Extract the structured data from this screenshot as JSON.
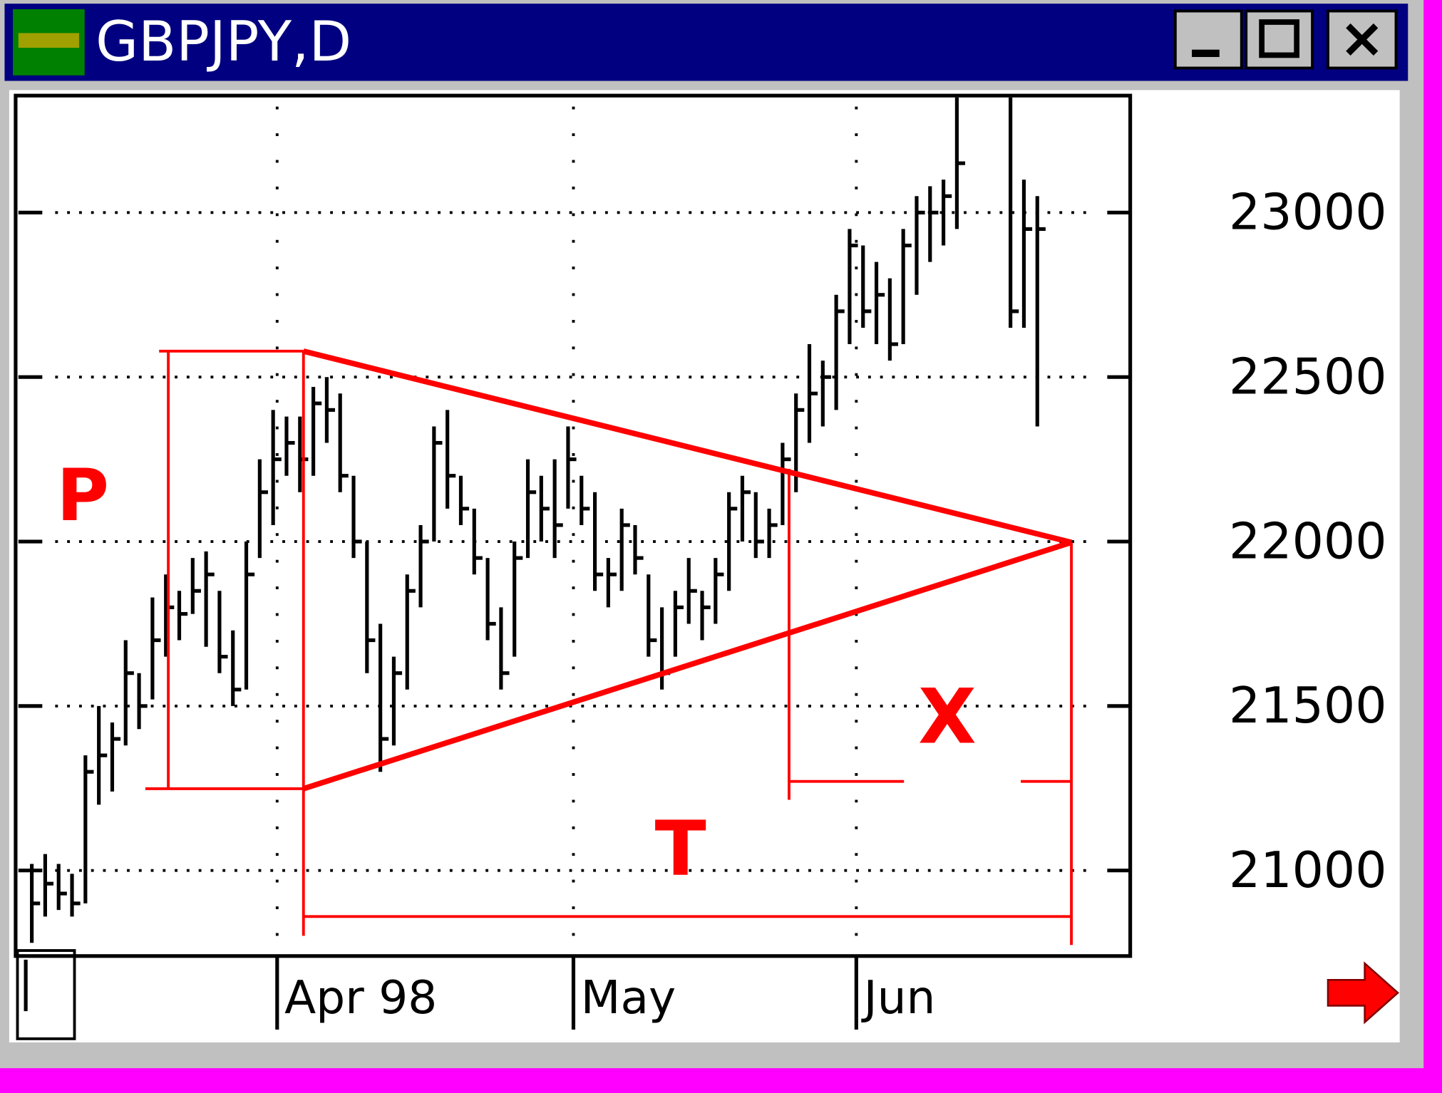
{
  "window_title": "GBPJPY,D",
  "annotations": {
    "p": "P",
    "t": "T",
    "x": "X"
  },
  "chart_data": {
    "type": "ohlc",
    "xlim": [
      0,
      83
    ],
    "xticks": [
      {
        "value": 19.3,
        "label": "Apr 98"
      },
      {
        "value": 41.4,
        "label": "May"
      },
      {
        "value": 62.5,
        "label": "Jun"
      }
    ],
    "ylim": [
      20740,
      23350
    ],
    "yticks": [
      21000,
      21500,
      22000,
      22500,
      23000
    ],
    "grid": true,
    "color": "#000000",
    "series": [
      {
        "x": [
          1,
          2,
          3,
          4,
          5,
          6,
          7,
          8,
          9,
          10,
          11,
          12,
          13,
          14,
          15,
          16,
          17,
          18,
          19,
          20,
          21,
          22,
          23,
          24,
          25,
          26,
          27,
          28,
          29,
          30,
          31,
          32,
          33,
          34,
          35,
          36,
          37,
          38,
          39,
          40,
          41,
          42,
          43,
          44,
          45,
          46,
          47,
          48,
          49,
          50,
          51,
          52,
          53,
          54,
          55,
          56,
          57,
          58,
          59,
          60,
          61,
          62,
          63,
          64,
          65,
          66,
          67,
          68,
          69,
          70,
          74,
          75,
          76
        ],
        "high": [
          21020,
          21050,
          21020,
          20990,
          21350,
          21500,
          21450,
          21700,
          21600,
          21830,
          21900,
          21850,
          21950,
          21970,
          21850,
          21730,
          22000,
          22250,
          22400,
          22380,
          22380,
          22470,
          22500,
          22450,
          22200,
          22000,
          21750,
          21650,
          21900,
          22050,
          22350,
          22400,
          22200,
          22100,
          21950,
          21800,
          22000,
          22250,
          22200,
          22250,
          22350,
          22200,
          22150,
          21950,
          22100,
          22050,
          21900,
          21800,
          21850,
          21950,
          21850,
          21950,
          22150,
          22200,
          22150,
          22100,
          22300,
          22450,
          22600,
          22550,
          22750,
          22950,
          22900,
          22850,
          22800,
          22950,
          23050,
          23080,
          23100,
          23350,
          23350,
          23100,
          23050
        ],
        "low": [
          20780,
          20860,
          20880,
          20860,
          20900,
          21200,
          21240,
          21380,
          21430,
          21520,
          21650,
          21700,
          21780,
          21680,
          21600,
          21500,
          21550,
          21950,
          22050,
          22200,
          22150,
          22200,
          22300,
          22150,
          21950,
          21600,
          21300,
          21380,
          21550,
          21800,
          22000,
          22100,
          22050,
          21900,
          21700,
          21550,
          21650,
          21950,
          22000,
          21950,
          22100,
          22050,
          21850,
          21800,
          21850,
          21900,
          21650,
          21550,
          21650,
          21750,
          21700,
          21750,
          21850,
          22000,
          21950,
          21950,
          22050,
          22150,
          22300,
          22350,
          22400,
          22600,
          22650,
          22600,
          22550,
          22600,
          22750,
          22850,
          22900,
          22950,
          22650,
          22650,
          22350
        ],
        "close": [
          20900,
          20960,
          20930,
          20900,
          21300,
          21350,
          21400,
          21600,
          21500,
          21700,
          21800,
          21780,
          21850,
          21900,
          21650,
          21550,
          21900,
          22150,
          22250,
          22300,
          22250,
          22420,
          22400,
          22200,
          22000,
          21700,
          21400,
          21600,
          21850,
          22000,
          22300,
          22200,
          22100,
          21950,
          21750,
          21600,
          21950,
          22150,
          22100,
          22050,
          22250,
          22100,
          21900,
          21900,
          22050,
          21950,
          21700,
          21600,
          21800,
          21850,
          21800,
          21900,
          22100,
          22150,
          22000,
          22050,
          22250,
          22400,
          22450,
          22500,
          22700,
          22900,
          22700,
          22750,
          22600,
          22900,
          23000,
          23000,
          23050,
          23150,
          22700,
          22950,
          22950
        ]
      }
    ]
  }
}
